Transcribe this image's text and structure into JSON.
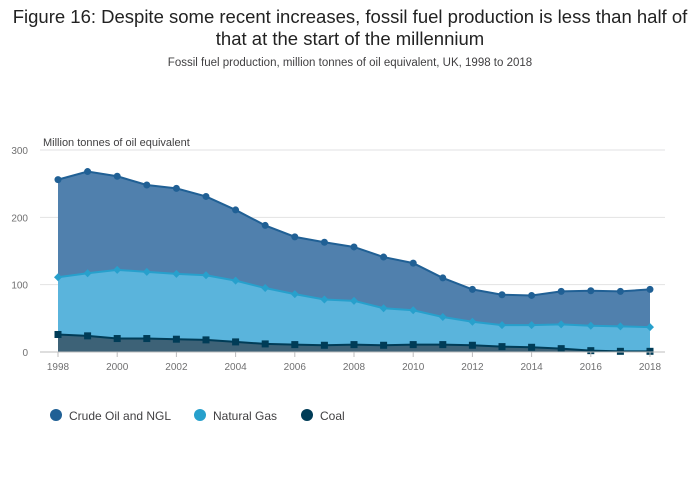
{
  "title": "Figure 16: Despite some recent increases, fossil fuel production is less than half of that at the start of the millennium",
  "subtitle": "Fossil fuel production, million tonnes of oil equivalent, UK, 1998 to 2018",
  "chart_data": {
    "type": "area",
    "title": "Figure 16: Despite some recent increases, fossil fuel production is less than half of that at the start of the millennium",
    "subtitle": "Fossil fuel production, million tonnes of oil equivalent, UK, 1998 to 2018",
    "ylabel": "Million tonnes of oil equivalent",
    "xlabel": "",
    "ylim": [
      0,
      300
    ],
    "yticks": [
      0,
      100,
      200,
      300
    ],
    "xlim": [
      1998,
      2018
    ],
    "xticks": [
      1998,
      2000,
      2002,
      2004,
      2006,
      2008,
      2010,
      2012,
      2014,
      2016,
      2018
    ],
    "x": [
      1998,
      1999,
      2000,
      2001,
      2002,
      2003,
      2004,
      2005,
      2006,
      2007,
      2008,
      2009,
      2010,
      2011,
      2012,
      2013,
      2014,
      2015,
      2016,
      2017,
      2018
    ],
    "series": [
      {
        "name": "Crude Oil and NGL",
        "color": "#206095",
        "fill": "#5080ad",
        "marker": "circle",
        "values": [
          256,
          268,
          261,
          248,
          243,
          231,
          211,
          188,
          171,
          163,
          156,
          141,
          132,
          110,
          93,
          85,
          84,
          90,
          91,
          90,
          93
        ]
      },
      {
        "name": "Natural Gas",
        "color": "#27a0cc",
        "fill": "#5ab4dc",
        "marker": "diamond",
        "values": [
          111,
          117,
          122,
          119,
          116,
          114,
          106,
          95,
          86,
          78,
          76,
          65,
          62,
          52,
          45,
          40,
          40,
          41,
          39,
          38,
          37
        ]
      },
      {
        "name": "Coal",
        "color": "#003c57",
        "fill": "#3d6277",
        "marker": "square",
        "values": [
          26,
          24,
          20,
          20,
          19,
          18,
          15,
          12,
          11,
          10,
          11,
          10,
          11,
          11,
          10,
          8,
          7,
          5,
          2,
          1,
          1
        ]
      }
    ],
    "grid": true,
    "legend_position": "bottom-left"
  }
}
